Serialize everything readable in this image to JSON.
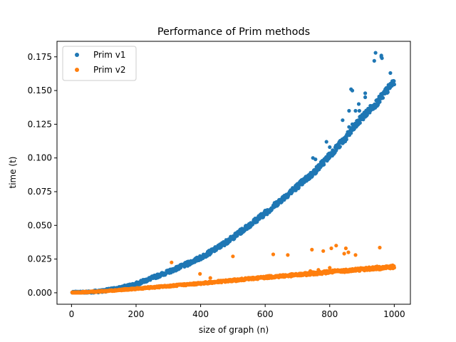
{
  "chart_data": {
    "type": "scatter",
    "title": "Performance of Prim methods",
    "xlabel": "size of graph (n)",
    "ylabel": "time (t)",
    "xlim": [
      -45,
      1050
    ],
    "ylim": [
      -0.0085,
      0.1865
    ],
    "xticks": [
      0,
      200,
      400,
      600,
      800,
      1000
    ],
    "xtick_labels": [
      "0",
      "200",
      "400",
      "600",
      "800",
      "1000"
    ],
    "yticks": [
      0.0,
      0.025,
      0.05,
      0.075,
      0.1,
      0.125,
      0.15,
      0.175
    ],
    "ytick_labels": [
      "0.000",
      "0.025",
      "0.050",
      "0.075",
      "0.100",
      "0.125",
      "0.150",
      "0.175"
    ],
    "grid": false,
    "legend_position": "top-left",
    "series": [
      {
        "name": "Prim v1",
        "color": "#1f77b4",
        "trend": [
          [
            0,
            0.0
          ],
          [
            50,
            0.0005
          ],
          [
            100,
            0.0015
          ],
          [
            150,
            0.0035
          ],
          [
            200,
            0.0065
          ],
          [
            250,
            0.011
          ],
          [
            300,
            0.0155
          ],
          [
            350,
            0.0205
          ],
          [
            400,
            0.026
          ],
          [
            450,
            0.033
          ],
          [
            500,
            0.041
          ],
          [
            550,
            0.05
          ],
          [
            600,
            0.059
          ],
          [
            650,
            0.069
          ],
          [
            700,
            0.079
          ],
          [
            750,
            0.089
          ],
          [
            800,
            0.102
          ],
          [
            850,
            0.115
          ],
          [
            900,
            0.13
          ],
          [
            950,
            0.142
          ],
          [
            1000,
            0.157
          ]
        ],
        "points": [
          [
            942,
            0.178
          ],
          [
            960,
            0.176
          ],
          [
            962,
            0.174
          ],
          [
            700,
            0.079
          ],
          [
            748,
            0.1
          ],
          [
            756,
            0.099
          ],
          [
            790,
            0.112
          ],
          [
            800,
            0.108
          ],
          [
            860,
            0.123
          ],
          [
            870,
            0.125
          ],
          [
            880,
            0.135
          ],
          [
            890,
            0.14
          ],
          [
            910,
            0.145
          ],
          [
            840,
            0.128
          ],
          [
            860,
            0.135
          ],
          [
            866,
            0.151
          ],
          [
            870,
            0.15
          ],
          [
            892,
            0.135
          ],
          [
            910,
            0.148
          ],
          [
            960,
            0.175
          ],
          [
            938,
            0.172
          ],
          [
            988,
            0.163
          ],
          [
            350,
            0.0215
          ],
          [
            360,
            0.02
          ],
          [
            520,
            0.046
          ],
          [
            550,
            0.051
          ],
          [
            580,
            0.057
          ],
          [
            600,
            0.061
          ],
          [
            640,
            0.066
          ]
        ]
      },
      {
        "name": "Prim v2",
        "color": "#ff7f0e",
        "trend": [
          [
            0,
            0.0
          ],
          [
            100,
            0.0012
          ],
          [
            200,
            0.003
          ],
          [
            300,
            0.005
          ],
          [
            400,
            0.007
          ],
          [
            500,
            0.0092
          ],
          [
            600,
            0.0115
          ],
          [
            700,
            0.0133
          ],
          [
            800,
            0.0155
          ],
          [
            900,
            0.0175
          ],
          [
            1000,
            0.0193
          ]
        ],
        "points": [
          [
            310,
            0.0225
          ],
          [
            500,
            0.027
          ],
          [
            625,
            0.0285
          ],
          [
            670,
            0.028
          ],
          [
            745,
            0.032
          ],
          [
            780,
            0.031
          ],
          [
            805,
            0.033
          ],
          [
            820,
            0.035
          ],
          [
            845,
            0.029
          ],
          [
            850,
            0.033
          ],
          [
            858,
            0.03
          ],
          [
            880,
            0.028
          ],
          [
            955,
            0.0335
          ],
          [
            398,
            0.014
          ],
          [
            430,
            0.011
          ],
          [
            740,
            0.0162
          ],
          [
            765,
            0.017
          ],
          [
            800,
            0.0185
          ]
        ]
      }
    ]
  }
}
